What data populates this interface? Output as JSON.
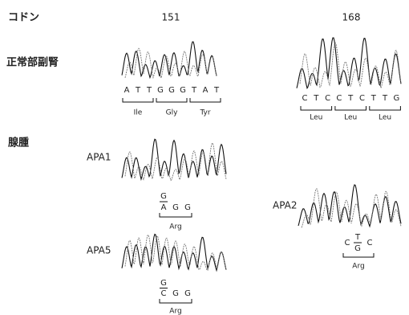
{
  "header": {
    "codon_label": "コドン",
    "codon_1": "151",
    "codon_2": "168"
  },
  "rows": {
    "normal_label": "正常部副腎",
    "adenoma_label": "腺腫"
  },
  "normal": [
    {
      "bases": [
        "A",
        "T",
        "T",
        "G",
        "G",
        "G",
        "T",
        "A",
        "T"
      ],
      "amino_acids": [
        "Ile",
        "Gly",
        "Tyr"
      ]
    },
    {
      "bases": [
        "C",
        "T",
        "C",
        "C",
        "T",
        "C",
        "T",
        "T",
        "G"
      ],
      "amino_acids": [
        "Leu",
        "Leu",
        "Leu"
      ]
    }
  ],
  "adenoma": [
    {
      "label": "APA1",
      "upper": "G",
      "lower": "A",
      "bases_after": [
        "G",
        "G"
      ],
      "amino_acid": "Arg"
    },
    {
      "label": "APA5",
      "upper": "G",
      "lower": "C",
      "bases_after": [
        "G",
        "G"
      ],
      "amino_acid": "Arg"
    },
    {
      "label": "APA2",
      "bases_before": [
        "C"
      ],
      "upper": "T",
      "lower": "G",
      "bases_after": [
        "C"
      ],
      "amino_acid": "Arg"
    }
  ]
}
